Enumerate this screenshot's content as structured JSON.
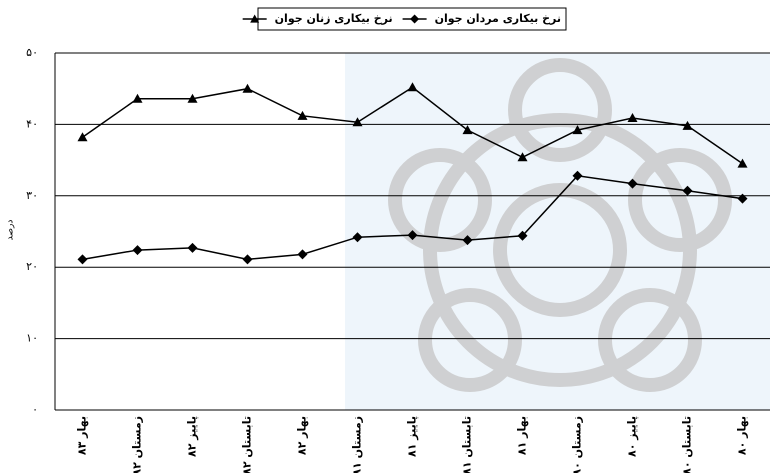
{
  "chart_data": {
    "type": "line",
    "y_label": "درصد",
    "categories": [
      "بهار ۸۳",
      "زمستان ۸۲",
      "پاییز ۸۲",
      "تابستان ۸۲",
      "بهار ۸۲",
      "زمستان ۸۱",
      "پاییز ۸۱",
      "تابستان ۸۱",
      "بهار ۸۱",
      "زمستان ۸۰",
      "پاییز ۸۰",
      "تابستان ۸۰",
      "بهار ۸۰"
    ],
    "series": [
      {
        "name": "نرخ بیکاری مردان جوان",
        "color": "#000000",
        "marker": "diamond",
        "values": [
          21.1,
          22.4,
          22.7,
          21.1,
          21.8,
          24.2,
          24.5,
          23.8,
          24.4,
          32.8,
          31.7,
          30.7,
          29.6
        ]
      },
      {
        "name": "نرخ بیکاری زنان جوان",
        "color": "#000000",
        "marker": "triangle",
        "values": [
          38.2,
          43.6,
          43.6,
          45.0,
          41.2,
          40.3,
          45.2,
          39.2,
          35.4,
          39.2,
          40.9,
          39.8,
          34.5
        ]
      }
    ],
    "ylim": [
      0,
      50
    ],
    "yticks": [
      {
        "value": 0,
        "label": "۰"
      },
      {
        "value": 10,
        "label": "۱۰"
      },
      {
        "value": 20,
        "label": "۲۰"
      },
      {
        "value": 30,
        "label": "۳۰"
      },
      {
        "value": 40,
        "label": "۴۰"
      },
      {
        "value": 50,
        "label": "۵۰"
      }
    ],
    "grid": true
  }
}
